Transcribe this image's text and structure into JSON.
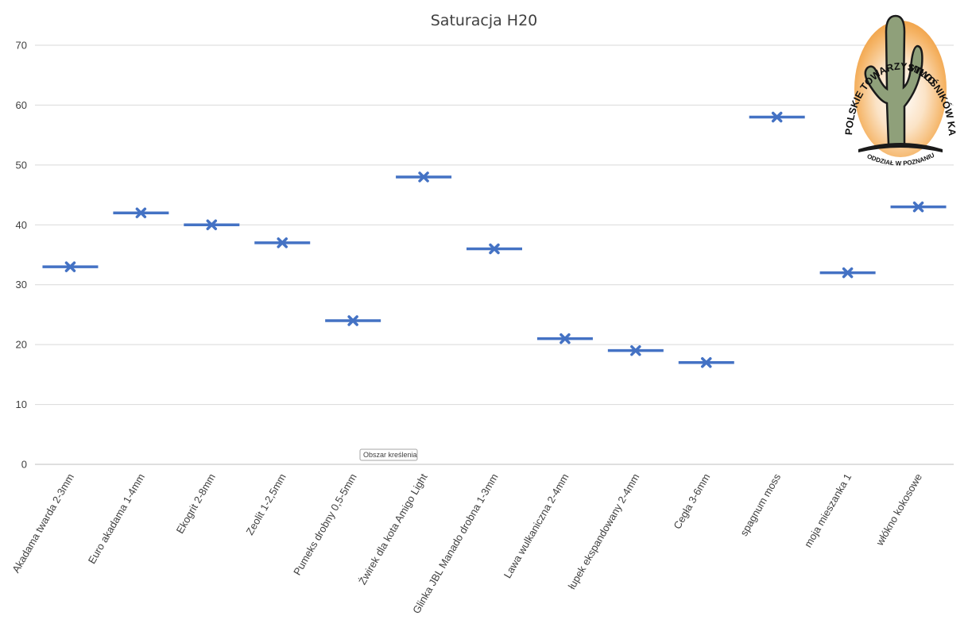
{
  "chart_data": {
    "type": "scatter",
    "title": "Saturacja H20",
    "xlabel": "",
    "ylabel": "",
    "ylim": [
      0,
      70
    ],
    "yticks": [
      0,
      10,
      20,
      30,
      40,
      50,
      60,
      70
    ],
    "grid": true,
    "legend": "none",
    "categories": [
      "Akadama twarda 2-3mm",
      "Euro akadama 1-4mm",
      "Ekogrit 2-8mm",
      "Zeolit 1-2,5mm",
      "Pumeks drobny 0,5-5mm",
      "Żwirek dla kota Amigo Light",
      "Glinka JBL Manado drobna 1-3mm",
      "Lawa wulkaniczna 2-4mm",
      "łupek ekspandowany 2-4mm",
      "Cegła 3-6mm",
      "spagnum moss",
      "moja mieszanka 1",
      "włókno kokosowe"
    ],
    "values": [
      33,
      42,
      40,
      37,
      24,
      48,
      36,
      21,
      19,
      17,
      58,
      32,
      43
    ],
    "color": "#4472c4"
  },
  "tooltip": {
    "text": "Obszar kreślenia"
  },
  "logo": {
    "ring_top_left": "POLSKIE TOWARZYSTWO",
    "ring_top_right": "MIŁOŚNIKÓW KAKTUSÓW",
    "ring_bottom": "ODDZIAŁ W POZNANIU"
  }
}
